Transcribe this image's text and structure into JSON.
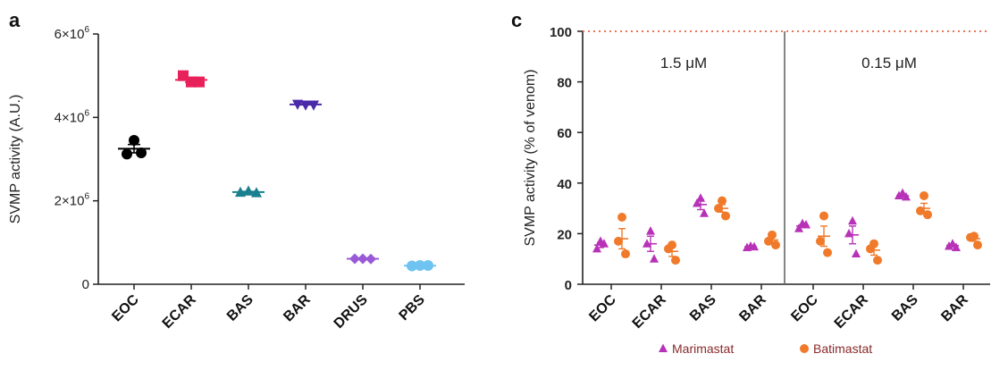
{
  "chart_data": [
    {
      "panel": "a",
      "type": "scatter",
      "ylabel": "SVMP activity (A.U.)",
      "xlabel": "",
      "ylim": [
        0,
        6000000
      ],
      "yticks": [
        {
          "value": 0,
          "label": "0",
          "sup": ""
        },
        {
          "value": 2000000,
          "label": "2×10",
          "sup": "6"
        },
        {
          "value": 4000000,
          "label": "4×10",
          "sup": "6"
        },
        {
          "value": 6000000,
          "label": "6×10",
          "sup": "6"
        }
      ],
      "categories": [
        "EOC",
        "ECAR",
        "BAS",
        "BAR",
        "DRUS",
        "PBS"
      ],
      "series": [
        {
          "name": "EOC",
          "color": "#000000",
          "marker": "circle",
          "values": [
            3450000,
            3120000,
            3150000
          ],
          "mean": 3250000,
          "sem": 100000
        },
        {
          "name": "ECAR",
          "color": "#e8215a",
          "marker": "square",
          "values": [
            5000000,
            4850000,
            4850000
          ],
          "mean": 4900000,
          "sem": 60000
        },
        {
          "name": "BAS",
          "color": "#1a7f8e",
          "marker": "triangle-up",
          "values": [
            2200000,
            2230000,
            2190000
          ],
          "mean": 2210000,
          "sem": 15000
        },
        {
          "name": "BAR",
          "color": "#4a2aa8",
          "marker": "triangle-down",
          "values": [
            4320000,
            4300000,
            4300000
          ],
          "mean": 4310000,
          "sem": 10000
        },
        {
          "name": "DRUS",
          "color": "#9a5ad6",
          "marker": "diamond",
          "values": [
            610000,
            610000,
            605000
          ],
          "mean": 610000,
          "sem": 5000
        },
        {
          "name": "PBS",
          "color": "#6ec3f0",
          "marker": "circle",
          "values": [
            440000,
            450000,
            450000
          ],
          "mean": 445000,
          "sem": 5000
        }
      ]
    },
    {
      "panel": "c",
      "type": "scatter",
      "ylabel": "SVMP activity (% of venom)",
      "xlabel": "",
      "ylim": [
        0,
        100
      ],
      "yticks": [
        0,
        20,
        40,
        60,
        80,
        100
      ],
      "reference_line": 100,
      "groups": [
        {
          "label": "1.5 μM",
          "categories": [
            "EOC",
            "ECAR",
            "BAS",
            "BAR"
          ]
        },
        {
          "label": "0.15 μM",
          "categories": [
            "EOC",
            "ECAR",
            "BAS",
            "BAR"
          ]
        }
      ],
      "series": [
        {
          "name": "Marimastat",
          "color": "#b832b8",
          "marker": "triangle-up",
          "points": [
            {
              "group": 0,
              "category": "EOC",
              "values": [
                17,
                14,
                16
              ],
              "mean": 15.5,
              "sem": 1
            },
            {
              "group": 0,
              "category": "ECAR",
              "values": [
                21,
                16,
                10
              ],
              "mean": 16,
              "sem": 3
            },
            {
              "group": 0,
              "category": "BAS",
              "values": [
                34,
                32,
                28
              ],
              "mean": 31.5,
              "sem": 2
            },
            {
              "group": 0,
              "category": "BAR",
              "values": [
                15,
                14.5,
                14.8
              ],
              "mean": 14.8,
              "sem": 0.3
            },
            {
              "group": 1,
              "category": "EOC",
              "values": [
                24,
                22,
                23.5
              ],
              "mean": 23,
              "sem": 0.5
            },
            {
              "group": 1,
              "category": "ECAR",
              "values": [
                25,
                20,
                12
              ],
              "mean": 19.5,
              "sem": 3.5
            },
            {
              "group": 1,
              "category": "BAS",
              "values": [
                36,
                35,
                34.5
              ],
              "mean": 35,
              "sem": 0.5
            },
            {
              "group": 1,
              "category": "BAR",
              "values": [
                16,
                15,
                14.5
              ],
              "mean": 15.3,
              "sem": 0.5
            }
          ]
        },
        {
          "name": "Batimastat",
          "color": "#f07a2a",
          "marker": "circle",
          "points": [
            {
              "group": 0,
              "category": "EOC",
              "values": [
                26.5,
                17,
                12
              ],
              "mean": 18,
              "sem": 4
            },
            {
              "group": 0,
              "category": "ECAR",
              "values": [
                15.5,
                14,
                9.5
              ],
              "mean": 13,
              "sem": 2
            },
            {
              "group": 0,
              "category": "BAS",
              "values": [
                33,
                30,
                27
              ],
              "mean": 30,
              "sem": 1.5
            },
            {
              "group": 0,
              "category": "BAR",
              "values": [
                19.5,
                17,
                15.5
              ],
              "mean": 17.5,
              "sem": 1.2
            },
            {
              "group": 1,
              "category": "EOC",
              "values": [
                27,
                17,
                12.5
              ],
              "mean": 19,
              "sem": 4
            },
            {
              "group": 1,
              "category": "ECAR",
              "values": [
                16,
                14,
                9.5
              ],
              "mean": 13.5,
              "sem": 2
            },
            {
              "group": 1,
              "category": "BAS",
              "values": [
                35,
                29,
                27.5
              ],
              "mean": 30,
              "sem": 2
            },
            {
              "group": 1,
              "category": "BAR",
              "values": [
                19,
                18.5,
                15.5
              ],
              "mean": 18,
              "sem": 1
            }
          ]
        }
      ],
      "legend": {
        "position": "bottom",
        "entries": [
          "Marimastat",
          "Batimastat"
        ]
      }
    }
  ],
  "panels": {
    "a": "a",
    "c": "c"
  }
}
